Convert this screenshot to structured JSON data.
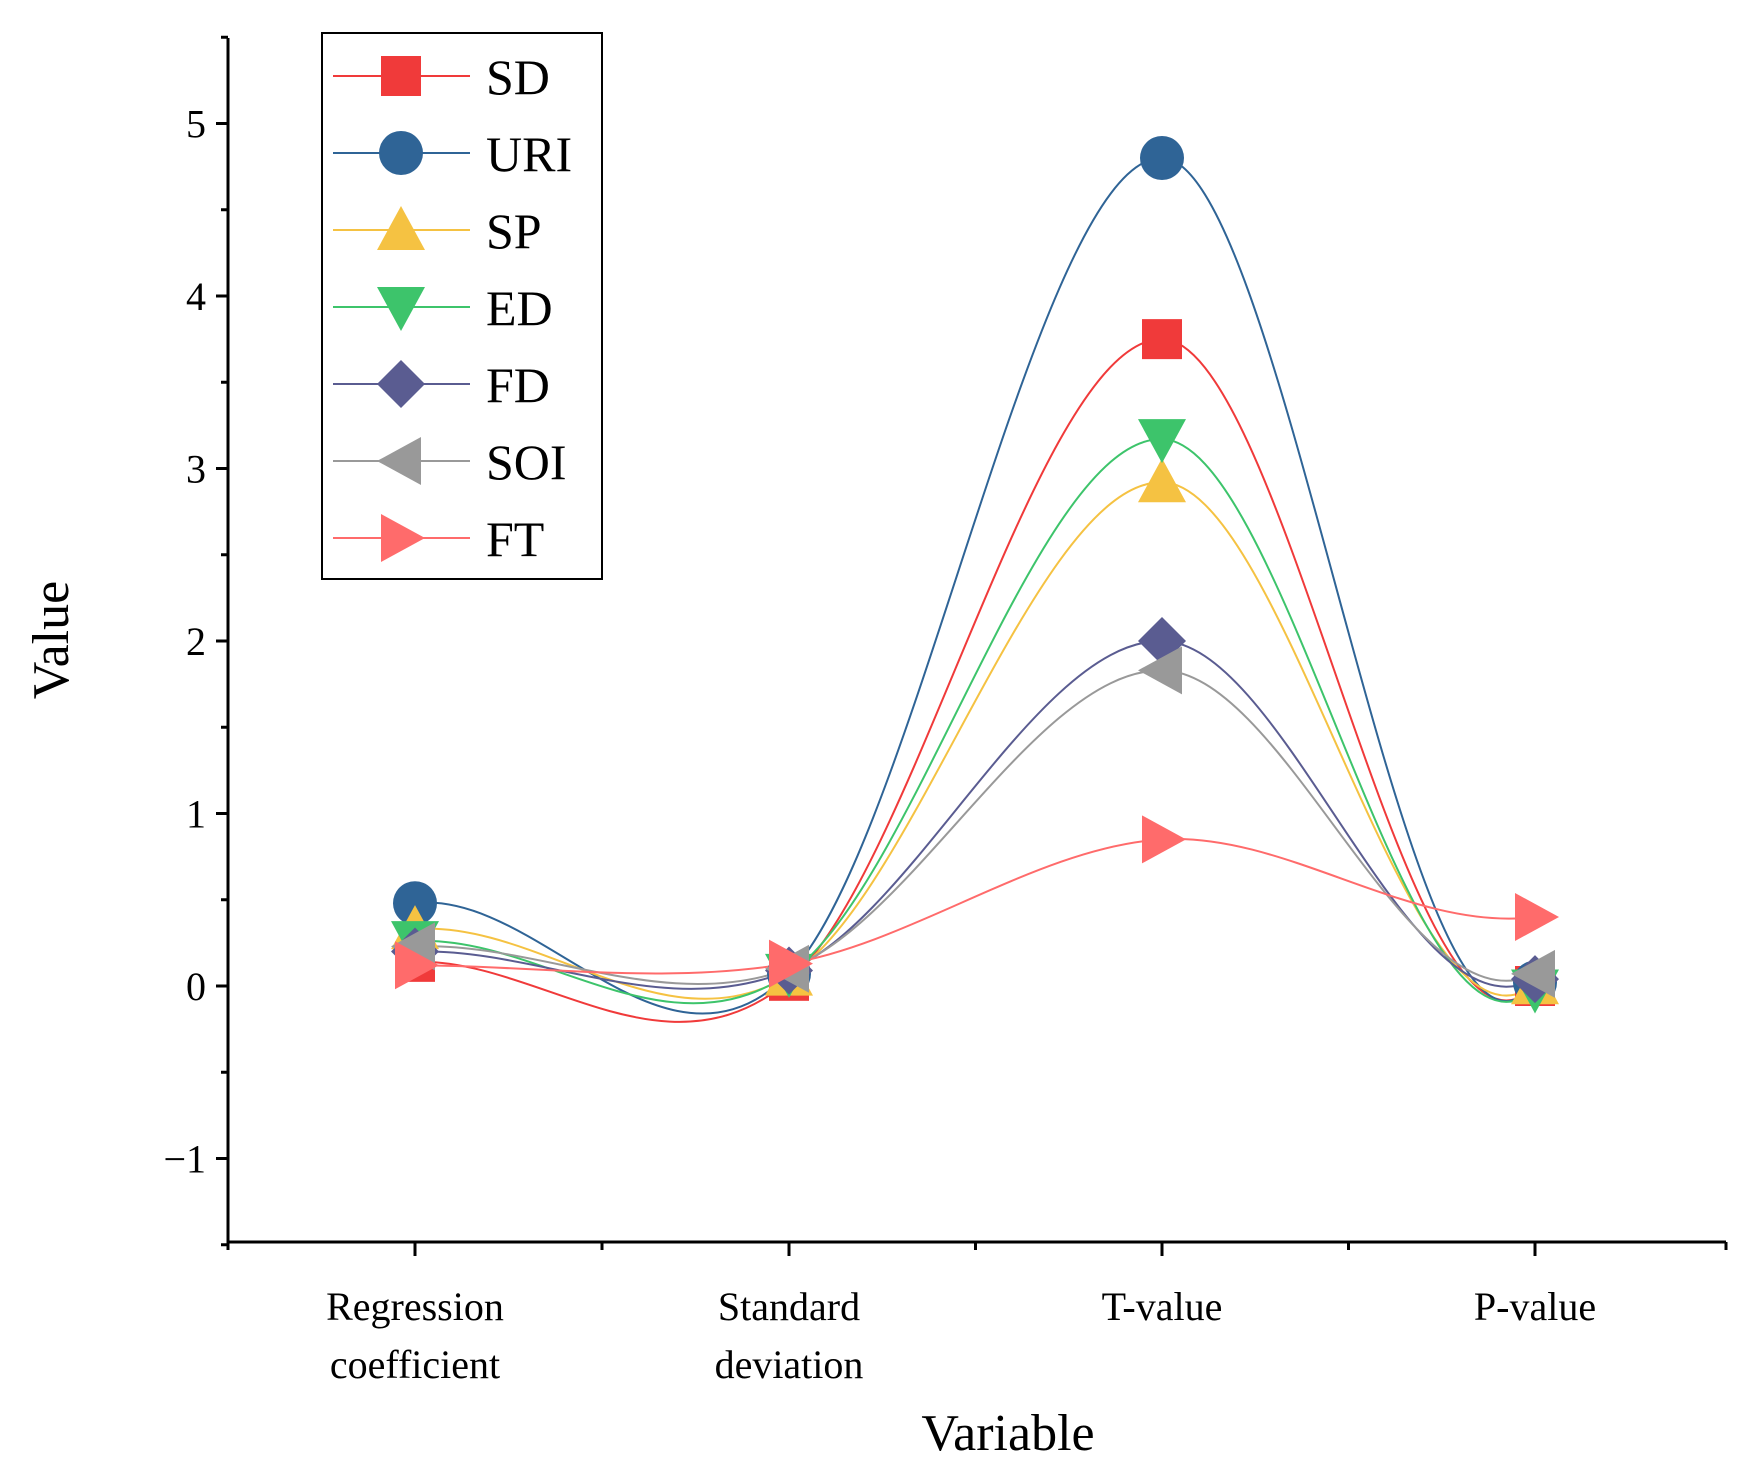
{
  "chart_data": {
    "type": "line",
    "title": "",
    "xlabel": "Variable",
    "ylabel": "Value",
    "ylim": [
      -1.5,
      5.5
    ],
    "yticks": [
      -1,
      0,
      1,
      2,
      3,
      4,
      5
    ],
    "ytick_labels": [
      "−1",
      "0",
      "1",
      "2",
      "3",
      "4",
      "5"
    ],
    "categories": [
      [
        "Regression",
        "coefficient"
      ],
      [
        "Standard",
        "deviation"
      ],
      [
        "T-value"
      ],
      [
        "P-value"
      ]
    ],
    "grid": false,
    "legend_position": "top-left",
    "series": [
      {
        "name": "SD",
        "color": "#f03a3a",
        "marker": "square",
        "values": [
          0.14,
          0.03,
          3.75,
          0.0
        ]
      },
      {
        "name": "URI",
        "color": "#2f6496",
        "marker": "circle",
        "values": [
          0.48,
          0.07,
          4.8,
          0.02
        ]
      },
      {
        "name": "SP",
        "color": "#f5c242",
        "marker": "triangle-up",
        "values": [
          0.33,
          0.06,
          2.92,
          0.01
        ]
      },
      {
        "name": "ED",
        "color": "#3dc46b",
        "marker": "triangle-down",
        "values": [
          0.26,
          0.07,
          3.17,
          -0.02
        ]
      },
      {
        "name": "FD",
        "color": "#5a5c91",
        "marker": "diamond",
        "values": [
          0.2,
          0.09,
          2.0,
          0.04
        ]
      },
      {
        "name": "SOI",
        "color": "#999999",
        "marker": "triangle-left",
        "values": [
          0.23,
          0.1,
          1.83,
          0.07
        ]
      },
      {
        "name": "FT",
        "color": "#ff6b6b",
        "marker": "triangle-right",
        "values": [
          0.12,
          0.13,
          0.85,
          0.4
        ]
      }
    ]
  }
}
